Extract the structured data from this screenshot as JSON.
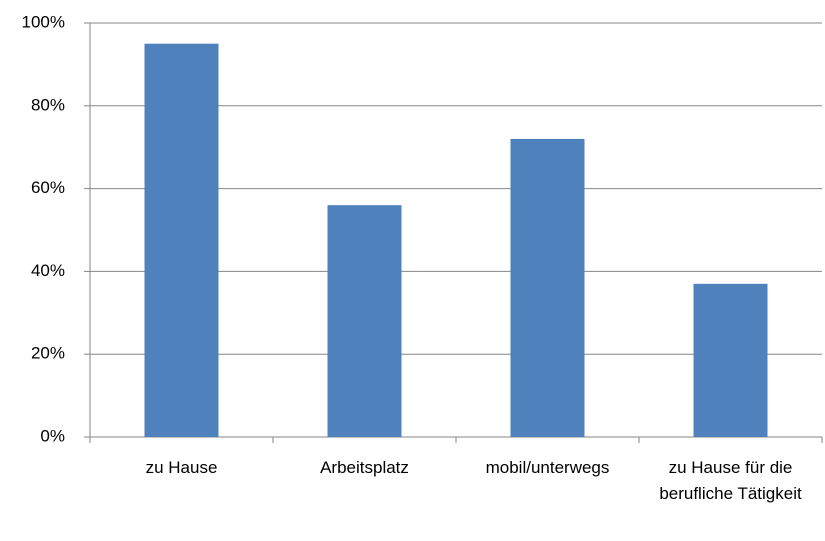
{
  "chart_data": {
    "type": "bar",
    "categories": [
      "zu Hause",
      "Arbeitsplatz",
      "mobil/unterwegs",
      "zu Hause für die berufliche Tätigkeit"
    ],
    "values": [
      95,
      56,
      72,
      37
    ],
    "color": "#4f81bd",
    "ylim": [
      0,
      100
    ],
    "yticks": [
      {
        "value": 0,
        "label": "0%"
      },
      {
        "value": 20,
        "label": "20%"
      },
      {
        "value": 40,
        "label": "40%"
      },
      {
        "value": 60,
        "label": "60%"
      },
      {
        "value": 80,
        "label": "80%"
      },
      {
        "value": 100,
        "label": "100%"
      }
    ],
    "grid": true
  }
}
